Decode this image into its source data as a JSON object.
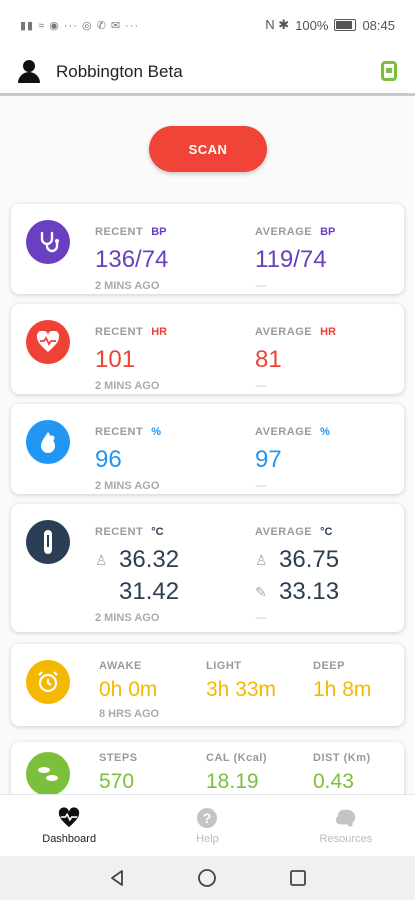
{
  "status": {
    "left_icons": "▮▮ ≈ ◉ ··· ◎ ✆ ✉ ···",
    "right_icons": "N ✱",
    "battery": "100%",
    "time": "08:45"
  },
  "header": {
    "user_name": "Robbington Beta"
  },
  "scan": {
    "label": "SCAN"
  },
  "colors": {
    "bp": "#6a3fc0",
    "hr": "#ef4136",
    "spo2": "#2196f3",
    "temp": "#2c3e55",
    "sleep": "#f5b800",
    "activity": "#7cbf3a"
  },
  "bp": {
    "recent_label": "RECENT",
    "unit": "BP",
    "recent_value": "136/74",
    "recent_time": "2 MINS AGO",
    "average_label": "AVERAGE",
    "average_value": "119/74",
    "average_time": "---"
  },
  "hr": {
    "recent_label": "RECENT",
    "unit": "HR",
    "recent_value": "101",
    "recent_time": "2 MINS AGO",
    "average_label": "AVERAGE",
    "average_value": "81",
    "average_time": "---"
  },
  "spo2": {
    "recent_label": "RECENT",
    "unit": "%",
    "recent_value": "96",
    "recent_time": "2 MINS AGO",
    "average_label": "AVERAGE",
    "average_value": "97",
    "average_time": "---"
  },
  "temp": {
    "recent_label": "RECENT",
    "unit": "°C",
    "recent_body": "36.32",
    "recent_surface": "31.42",
    "recent_time": "2 MINS AGO",
    "average_label": "AVERAGE",
    "average_body": "36.75",
    "average_surface": "33.13",
    "average_time": "---"
  },
  "sleep": {
    "awake_label": "AWAKE",
    "awake_value": "0h 0m",
    "light_label": "LIGHT",
    "light_value": "3h 33m",
    "deep_label": "DEEP",
    "deep_value": "1h 8m",
    "time": "8 HRS AGO"
  },
  "activity": {
    "steps_label": "STEPS",
    "steps_value": "570",
    "cal_label": "CAL (Kcal)",
    "cal_value": "18.19",
    "dist_label": "DIST (Km)",
    "dist_value": "0.43"
  },
  "nav": {
    "dashboard": "Dashboard",
    "help": "Help",
    "resources": "Resources"
  }
}
